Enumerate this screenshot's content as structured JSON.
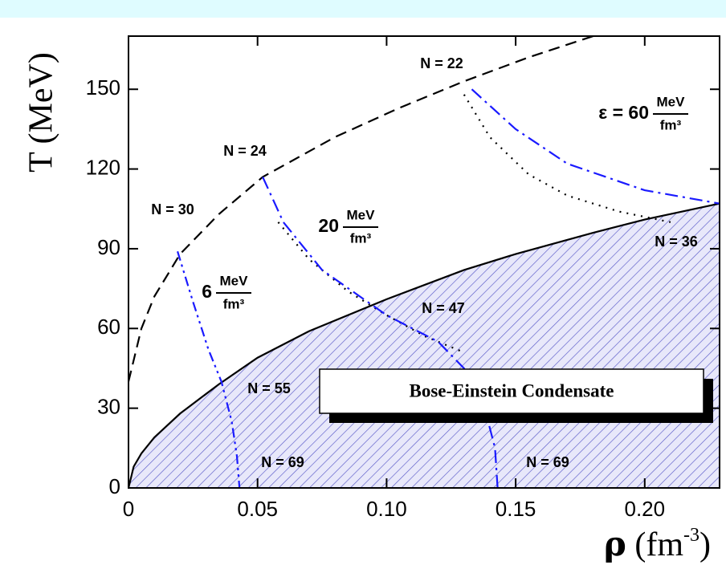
{
  "chart_data": {
    "type": "line",
    "y_label": "T (MeV)",
    "x_label_parts": [
      "ρ",
      "(fm",
      "-3",
      ")"
    ],
    "xlim": [
      0,
      0.229
    ],
    "ylim": [
      0,
      170
    ],
    "xticks": [
      0,
      0.05,
      {
        "value": 0.1,
        "label": "0.10"
      },
      0.15,
      {
        "value": 0.2,
        "label": "0.20"
      }
    ],
    "yticks": [
      0,
      30,
      60,
      90,
      120,
      150
    ],
    "series": [
      {
        "color": "#000000",
        "style": "solid",
        "fill": "hatch",
        "x": [
          0,
          0.002,
          0.005,
          0.01,
          0.02,
          0.035,
          0.05,
          0.07,
          0.1,
          0.13,
          0.15,
          0.18,
          0.2,
          0.229
        ],
        "values": [
          0,
          8,
          13,
          19,
          28,
          39,
          49,
          59,
          71,
          82,
          88,
          96,
          101,
          107
        ]
      },
      {
        "color": "#000000",
        "style": "dashed",
        "x": [
          0,
          0.005,
          0.01,
          0.02,
          0.035,
          0.052,
          0.08,
          0.105,
          0.13,
          0.155,
          0.18
        ],
        "values": [
          40,
          60,
          72,
          88,
          103,
          117,
          132,
          143,
          153,
          162,
          170
        ]
      },
      {
        "color": "#000000",
        "style": "dotted",
        "x": [
          0.058,
          0.07,
          0.085,
          0.1,
          0.115,
          0.13
        ],
        "values": [
          100,
          86,
          74,
          65,
          57,
          51
        ]
      },
      {
        "color": "#000000",
        "style": "dotted",
        "x": [
          0.13,
          0.14,
          0.155,
          0.17,
          0.19,
          0.21
        ],
        "values": [
          148,
          132,
          118,
          110,
          104,
          100
        ]
      },
      {
        "color": "#1a1aff",
        "style": "dashdotdot",
        "x": [
          0.019,
          0.025,
          0.031,
          0.036,
          0.04,
          0.042,
          0.043
        ],
        "values": [
          89,
          70,
          52,
          40,
          25,
          12,
          0
        ]
      },
      {
        "color": "#1a1aff",
        "style": "dashdot",
        "x": [
          0.052,
          0.06,
          0.075,
          0.1,
          0.12,
          0.13,
          0.138,
          0.142,
          0.143
        ],
        "values": [
          117,
          100,
          82,
          65,
          55,
          45,
          30,
          15,
          0
        ]
      },
      {
        "color": "#1a1aff",
        "style": "dashdot",
        "x": [
          0.133,
          0.15,
          0.17,
          0.2,
          0.229
        ],
        "values": [
          150,
          135,
          122,
          112,
          107
        ]
      }
    ],
    "annotations": [
      "N = 22",
      "N = 24",
      "N = 30",
      "N = 36",
      "N = 47",
      "N = 55",
      "N = 69",
      "N = 69"
    ],
    "energy_labels": [
      {
        "value_text": "ε = 60",
        "numerator": "MeV",
        "denominator": "fm³"
      },
      {
        "value_text": "20",
        "numerator": "MeV",
        "denominator": "fm³"
      },
      {
        "value_text": "6",
        "numerator": "MeV",
        "denominator": "fm³"
      }
    ],
    "region_label": "Bose-Einstein Condensate"
  }
}
